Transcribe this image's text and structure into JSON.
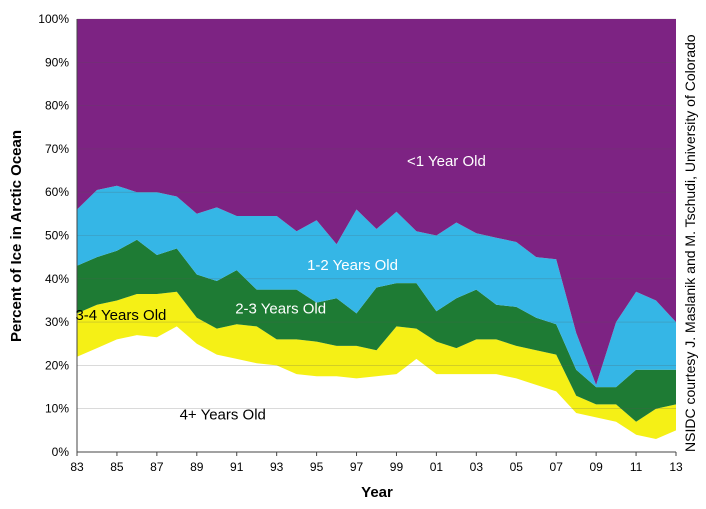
{
  "chart_data": {
    "type": "area",
    "stacked": true,
    "xlabel": "Year",
    "ylabel": "Percent of Ice in Arctic Ocean",
    "x": [
      1983,
      1984,
      1985,
      1986,
      1987,
      1988,
      1989,
      1990,
      1991,
      1992,
      1993,
      1994,
      1995,
      1996,
      1997,
      1998,
      1999,
      2000,
      2001,
      2002,
      2003,
      2004,
      2005,
      2006,
      2007,
      2008,
      2009,
      2010,
      2011,
      2012,
      2013
    ],
    "xticks": [
      {
        "year": 1983,
        "label": "83"
      },
      {
        "year": 1985,
        "label": "85"
      },
      {
        "year": 1987,
        "label": "87"
      },
      {
        "year": 1989,
        "label": "89"
      },
      {
        "year": 1991,
        "label": "91"
      },
      {
        "year": 1993,
        "label": "93"
      },
      {
        "year": 1995,
        "label": "95"
      },
      {
        "year": 1997,
        "label": "97"
      },
      {
        "year": 1999,
        "label": "99"
      },
      {
        "year": 2001,
        "label": "01"
      },
      {
        "year": 2003,
        "label": "03"
      },
      {
        "year": 2005,
        "label": "05"
      },
      {
        "year": 2007,
        "label": "07"
      },
      {
        "year": 2009,
        "label": "09"
      },
      {
        "year": 2011,
        "label": "11"
      },
      {
        "year": 2013,
        "label": "13"
      }
    ],
    "yticks": [
      "0%",
      "10%",
      "20%",
      "30%",
      "40%",
      "50%",
      "60%",
      "70%",
      "80%",
      "90%",
      "100%"
    ],
    "ylim": [
      0,
      100
    ],
    "series": [
      {
        "name": "4+ Years Old",
        "color": "#ffffff",
        "values": [
          22,
          24,
          26,
          27,
          26.5,
          29,
          25,
          22.5,
          21.5,
          20.5,
          20,
          18,
          17.5,
          17.5,
          17,
          17.5,
          18,
          21.5,
          18,
          18,
          18,
          18,
          17,
          15.5,
          14,
          9,
          8,
          7,
          4,
          3,
          5
        ]
      },
      {
        "name": "3-4 Years Old",
        "color": "#f5f016",
        "values": [
          10,
          10,
          9,
          9.5,
          10,
          8,
          6,
          6,
          8,
          8.5,
          6,
          8,
          8,
          7,
          7.5,
          6,
          11,
          7,
          7.5,
          6,
          8,
          8,
          7.5,
          8,
          8.5,
          4,
          3,
          4,
          3,
          7,
          6
        ]
      },
      {
        "name": "2-3 Years Old",
        "color": "#1e7b34",
        "values": [
          11,
          11,
          11.5,
          12.5,
          9,
          10,
          10,
          11,
          12.5,
          8.5,
          11.5,
          11.5,
          9,
          11,
          7.5,
          14.5,
          10,
          10.5,
          7,
          11.5,
          11.5,
          8,
          9,
          7.5,
          7,
          6,
          4,
          4,
          12,
          9,
          8
        ]
      },
      {
        "name": "1-2 Years Old",
        "color": "#35b6e6",
        "values": [
          13,
          15.5,
          15,
          11,
          14.5,
          12,
          14,
          17,
          12.5,
          17,
          17,
          13.5,
          19,
          12.5,
          24,
          13.5,
          16.5,
          12,
          17.5,
          17.5,
          13,
          15.5,
          15,
          14,
          15,
          8.5,
          0.5,
          15,
          18,
          16,
          11
        ]
      },
      {
        "name": "<1 Year Old",
        "color": "#7d2383",
        "values": [
          44,
          39.5,
          38.5,
          40,
          40,
          41,
          45,
          43.5,
          45.5,
          45.5,
          45.5,
          49,
          46.5,
          52,
          44,
          48.5,
          44.5,
          49,
          50,
          47,
          49.5,
          50.5,
          51.5,
          55,
          55.5,
          72.5,
          84.5,
          70,
          63,
          65,
          70
        ]
      }
    ],
    "labels": [
      {
        "text": "<1 Year Old",
        "x": 2001.5,
        "y": 66,
        "color": "#ffffff"
      },
      {
        "text": "1-2 Years Old",
        "x": 1996.8,
        "y": 42,
        "color": "#ffffff"
      },
      {
        "text": "2-3 Years Old",
        "x": 1993.2,
        "y": 32,
        "color": "#ffffff"
      },
      {
        "text": "3-4 Years Old",
        "x": 1985.2,
        "y": 30.5,
        "color": "#000000"
      },
      {
        "text": "4+ Years Old",
        "x": 1990.3,
        "y": 7.5,
        "color": "#000000"
      }
    ]
  },
  "credit": "NSIDC courtesy J. Maslanik and M. Tschudi, University of Colorado"
}
